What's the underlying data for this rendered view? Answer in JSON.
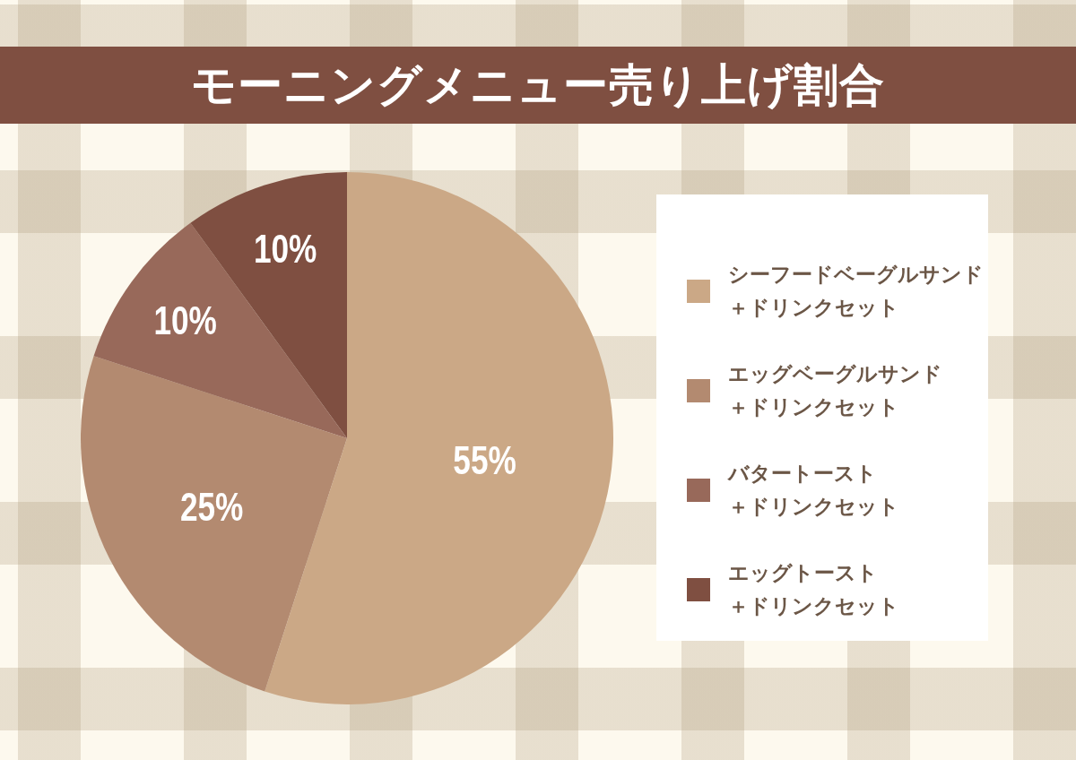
{
  "chart_data": {
    "type": "pie",
    "title": "モーニングメニュー売り上げ割合",
    "categories": [
      "シーフードベーグルサンド＋ドリンクセット",
      "エッグベーグルサンド＋ドリンクセット",
      "バタートースト＋ドリンクセット",
      "エッグトースト＋ドリンクセット"
    ],
    "values": [
      55,
      25,
      10,
      10
    ],
    "colors": [
      "#cba886",
      "#b38a70",
      "#98695a",
      "#7f4f41"
    ],
    "value_labels": [
      "55%",
      "25%",
      "10%",
      "10%"
    ],
    "legend": "right"
  }
}
